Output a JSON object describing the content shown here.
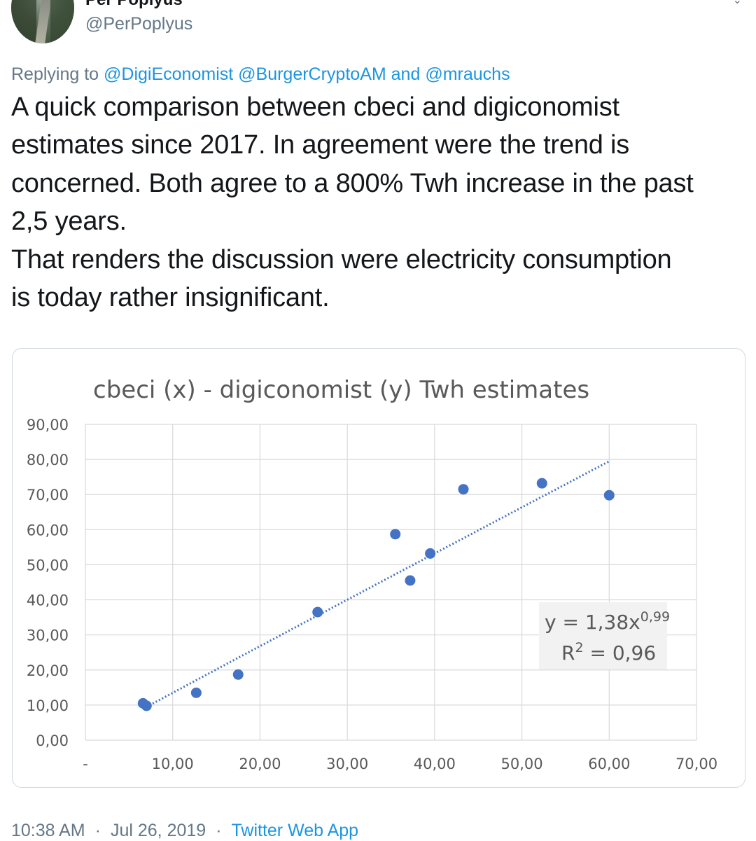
{
  "author": {
    "display_name": "Per Poplyus",
    "handle": "@PerPoplyus"
  },
  "replying": {
    "prefix": "Replying to",
    "mention_1": "@DigiEconomist",
    "mention_2": "@BurgerCryptoAM",
    "conjunction": "and",
    "mention_3": "@mrauchs"
  },
  "tweet_lines": [
    "A quick comparison between cbeci and digiconomist",
    "estimates since 2017. In agreement were the trend is",
    "concerned. Both agree to a 800% Twh increase in the past",
    "2,5 years.",
    "That renders the discussion were electricity consumption",
    "is today rather insignificant."
  ],
  "chart_data": {
    "type": "scatter",
    "title": "cbeci (x) - digiconomist (y)  Twh estimates",
    "xlabel": "",
    "ylabel": "",
    "xlim": [
      0,
      70
    ],
    "ylim": [
      0,
      90
    ],
    "x_tick_labels": [
      "-",
      "10,00",
      "20,00",
      "30,00",
      "40,00",
      "50,00",
      "60,00",
      "70,00"
    ],
    "y_tick_labels": [
      "0,00",
      "10,00",
      "20,00",
      "30,00",
      "40,00",
      "50,00",
      "60,00",
      "70,00",
      "80,00",
      "90,00"
    ],
    "grid": true,
    "series": [
      {
        "color": "#4472c4",
        "points": [
          {
            "x": 6.6,
            "y": 10.5
          },
          {
            "x": 7.0,
            "y": 9.8
          },
          {
            "x": 12.7,
            "y": 13.5
          },
          {
            "x": 17.5,
            "y": 18.7
          },
          {
            "x": 26.6,
            "y": 36.5
          },
          {
            "x": 35.5,
            "y": 58.7
          },
          {
            "x": 37.2,
            "y": 45.5
          },
          {
            "x": 39.5,
            "y": 53.2
          },
          {
            "x": 43.3,
            "y": 71.5
          },
          {
            "x": 52.3,
            "y": 73.2
          },
          {
            "x": 60.0,
            "y": 69.8
          }
        ]
      }
    ],
    "trendline": {
      "style": "dotted",
      "color": "#4472c4",
      "x_start": 7.0,
      "x_end": 60.0
    },
    "annotation": {
      "equation_prefix": "y = 1,38x",
      "equation_exponent": "0,99",
      "r2_prefix": "R",
      "r2_exponent": "2",
      "r2_suffix": " = 0,96"
    }
  },
  "footer": {
    "time": "10:38 AM",
    "separator": "·",
    "date": "Jul 26, 2019",
    "app": "Twitter Web App"
  },
  "colors": {
    "link": "#1b95e0",
    "muted": "#657786",
    "text": "#14171a",
    "series": "#4472c4"
  }
}
